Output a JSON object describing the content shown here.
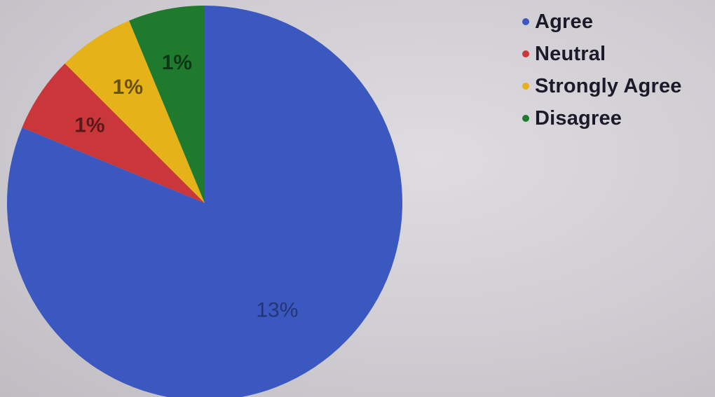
{
  "chart_data": {
    "type": "pie",
    "categories": [
      "Agree",
      "Neutral",
      "Strongly Agree",
      "Disagree"
    ],
    "values": [
      13,
      1,
      1,
      1
    ],
    "value_labels": [
      "13%",
      "1%",
      "1%",
      "1%"
    ],
    "colors": [
      "#3b57c0",
      "#c9373a",
      "#e6b21a",
      "#1f7a2e"
    ],
    "legend_position": "top-right",
    "start_angle": "12 o'clock, clockwise",
    "title": "",
    "grid": false
  },
  "legend": {
    "items": [
      {
        "label": "Agree",
        "color": "#3b57c0"
      },
      {
        "label": "Neutral",
        "color": "#c9373a"
      },
      {
        "label": "Strongly Agree",
        "color": "#e6b21a"
      },
      {
        "label": "Disagree",
        "color": "#1f7a2e"
      }
    ]
  }
}
